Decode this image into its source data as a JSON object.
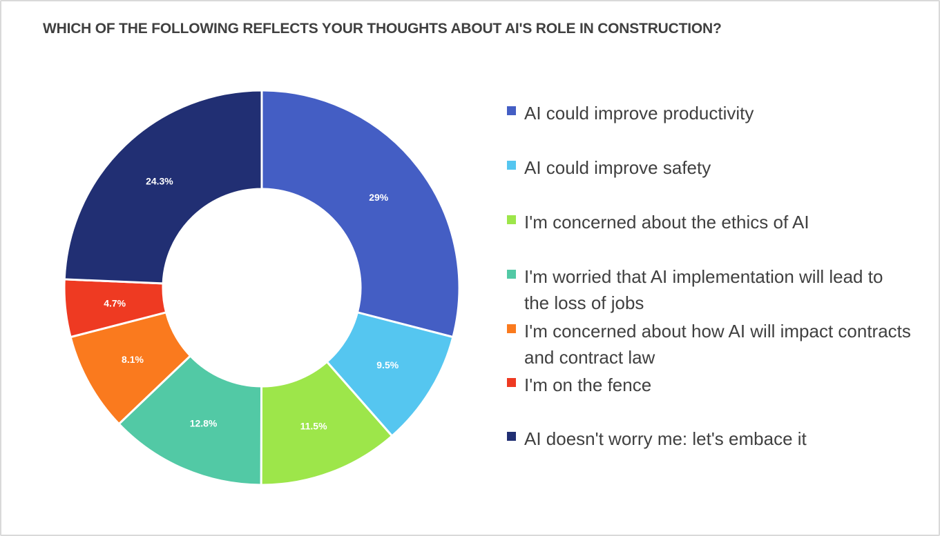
{
  "chart_data": {
    "type": "pie",
    "subtype": "donut",
    "title": "WHICH OF THE FOLLOWING REFLECTS YOUR THOUGHTS ABOUT AI'S ROLE IN CONSTRUCTION?",
    "legend_position": "right",
    "categories": [
      "AI could improve productivity",
      "AI could improve safety",
      "I'm concerned about the ethics of AI",
      "I'm worried that AI implementation will lead to the loss of jobs",
      "I'm concerned about how AI will impact contracts and contract law",
      "I'm on the fence",
      "AI doesn't worry me: let's embace it"
    ],
    "values": [
      29,
      9.5,
      11.5,
      12.8,
      8.1,
      4.7,
      24.3
    ],
    "data_labels": [
      "29%",
      "9.5%",
      "11.5%",
      "12.8%",
      "8.1%",
      "4.7%",
      "24.3%"
    ],
    "colors": [
      "#445ec4",
      "#55c6f0",
      "#9de64a",
      "#52c9a5",
      "#fa7a1e",
      "#ee3a22",
      "#212f73"
    ]
  }
}
